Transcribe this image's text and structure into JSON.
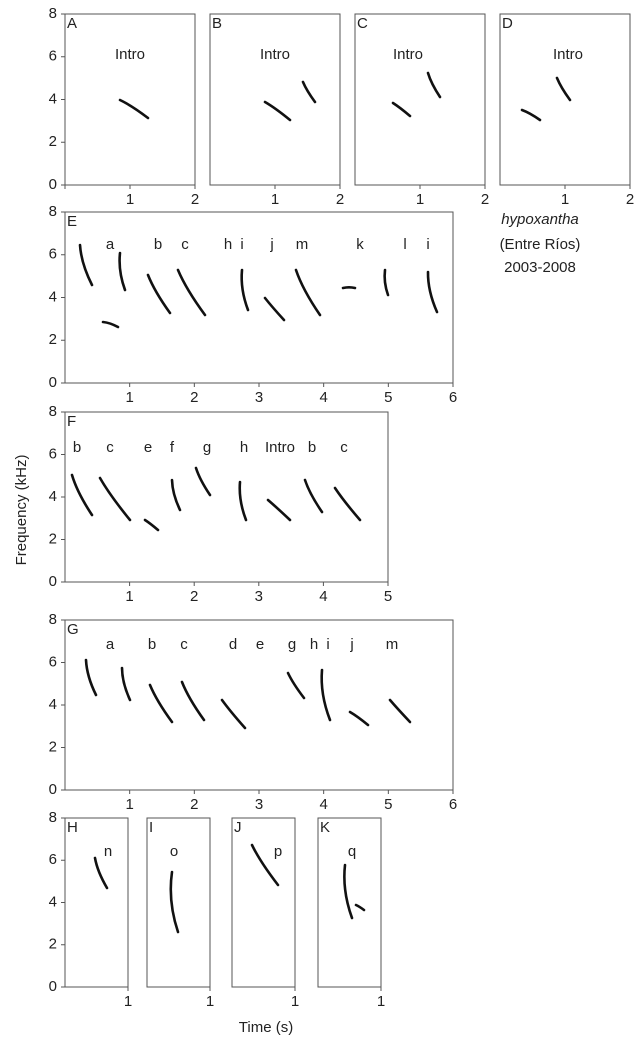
{
  "chart_data": [
    {
      "type": "spectrogram",
      "label": "A",
      "annotations": [
        "Intro"
      ],
      "xlim": [
        0,
        2
      ],
      "xticks": [
        0,
        1,
        2
      ],
      "ylim": [
        0,
        8
      ],
      "yticks": [
        0,
        2,
        4,
        6,
        8
      ]
    },
    {
      "type": "spectrogram",
      "label": "B",
      "annotations": [
        "Intro"
      ],
      "xlim": [
        0,
        2
      ],
      "xticks": [
        1,
        2
      ],
      "ylim": [
        0,
        8
      ]
    },
    {
      "type": "spectrogram",
      "label": "C",
      "annotations": [
        "Intro"
      ],
      "xlim": [
        0,
        2
      ],
      "xticks": [
        1,
        2
      ],
      "ylim": [
        0,
        8
      ]
    },
    {
      "type": "spectrogram",
      "label": "D",
      "annotations": [
        "Intro"
      ],
      "xlim": [
        0,
        2
      ],
      "xticks": [
        1,
        2
      ],
      "ylim": [
        0,
        8
      ]
    },
    {
      "type": "spectrogram",
      "label": "E",
      "annotations": [
        "a",
        "b",
        "c",
        "h",
        "i",
        "j",
        "m",
        "k",
        "l",
        "i"
      ],
      "xlim": [
        0,
        6
      ],
      "xticks": [
        1,
        2,
        3,
        4,
        5,
        6
      ],
      "ylim": [
        0,
        8
      ],
      "yticks": [
        0,
        2,
        4,
        6,
        8
      ]
    },
    {
      "type": "spectrogram",
      "label": "F",
      "annotations": [
        "b",
        "c",
        "e",
        "f",
        "g",
        "h",
        "Intro",
        "b",
        "c"
      ],
      "xlim": [
        0,
        5
      ],
      "xticks": [
        1,
        2,
        3,
        4,
        5
      ],
      "ylim": [
        0,
        8
      ],
      "yticks": [
        0,
        2,
        4,
        6,
        8
      ]
    },
    {
      "type": "spectrogram",
      "label": "G",
      "annotations": [
        "a",
        "b",
        "c",
        "d",
        "e",
        "g",
        "h",
        "i",
        "j",
        "m"
      ],
      "xlim": [
        0,
        6
      ],
      "xticks": [
        1,
        2,
        3,
        4,
        5,
        6
      ],
      "ylim": [
        0,
        8
      ],
      "yticks": [
        0,
        2,
        4,
        6,
        8
      ]
    },
    {
      "type": "spectrogram",
      "label": "H",
      "annotations": [
        "n"
      ],
      "xlim": [
        0,
        1
      ],
      "xticks": [
        1
      ],
      "ylim": [
        0,
        8
      ],
      "yticks": [
        0,
        2,
        4,
        6,
        8
      ]
    },
    {
      "type": "spectrogram",
      "label": "I",
      "annotations": [
        "o"
      ],
      "xlim": [
        0,
        1
      ],
      "xticks": [
        1
      ],
      "ylim": [
        0,
        8
      ]
    },
    {
      "type": "spectrogram",
      "label": "J",
      "annotations": [
        "p"
      ],
      "xlim": [
        0,
        1
      ],
      "xticks": [
        1
      ],
      "ylim": [
        0,
        8
      ]
    },
    {
      "type": "spectrogram",
      "label": "K",
      "annotations": [
        "q"
      ],
      "xlim": [
        0,
        1
      ],
      "xticks": [
        1
      ],
      "ylim": [
        0,
        8
      ]
    }
  ],
  "figure": {
    "ylabel": "Frequency (kHz)",
    "xlabel": "Time (s)",
    "caption": [
      "hypoxantha",
      "(Entre Ríos)",
      "2003-2008"
    ]
  }
}
